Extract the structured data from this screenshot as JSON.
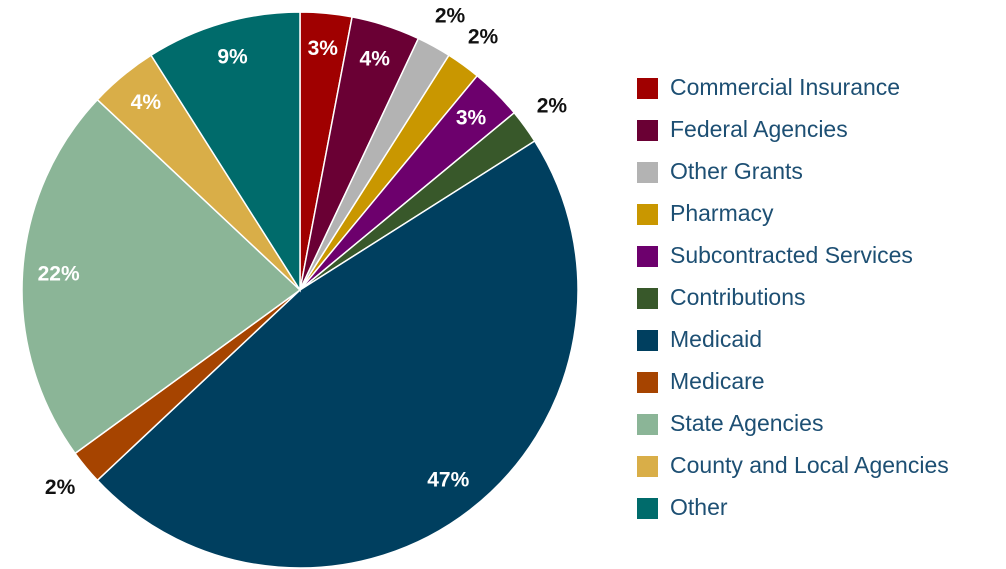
{
  "chart_data": {
    "type": "pie",
    "categories": [
      "Commercial Insurance",
      "Federal Agencies",
      "Other Grants",
      "Pharmacy",
      "Subcontracted Services",
      "Contributions",
      "Medicaid",
      "Medicare",
      "State Agencies",
      "County and Local Agencies",
      "Other"
    ],
    "values": [
      3,
      4,
      2,
      2,
      3,
      2,
      47,
      2,
      22,
      4,
      9
    ],
    "value_labels": [
      "3%",
      "4%",
      "2%",
      "2%",
      "3%",
      "2%",
      "47%",
      "2%",
      "22%",
      "4%",
      "9%"
    ],
    "colors": [
      "#a00000",
      "#6a0034",
      "#b3b3b3",
      "#c99700",
      "#6d006d",
      "#38582a",
      "#003f5f",
      "#a64400",
      "#8bb597",
      "#d9ae48",
      "#006b6b"
    ],
    "legend": "right"
  }
}
